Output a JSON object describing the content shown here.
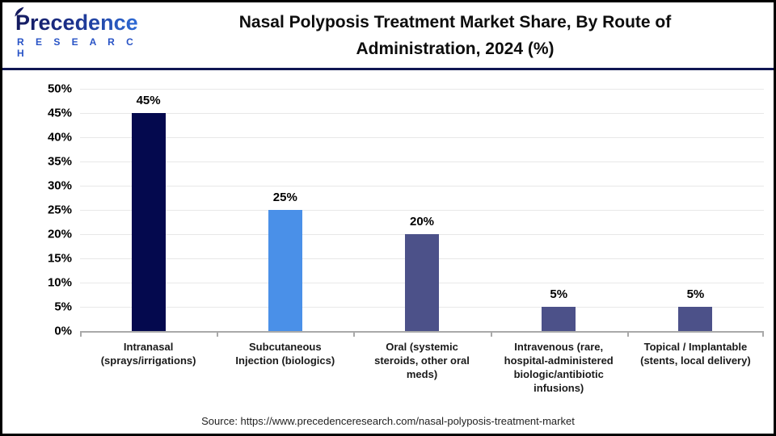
{
  "logo": {
    "brand": "Precedence",
    "brand_sub": "R E S E A R C H"
  },
  "header": {
    "title": "Nasal Polyposis Treatment Market Share, By Route of\nAdministration, 2024 (%)"
  },
  "chart_data": {
    "type": "bar",
    "title": "Nasal Polyposis Treatment Market Share, By Route of Administration, 2024 (%)",
    "categories": [
      "Intranasal\n(sprays/irrigations)",
      "Subcutaneous\nInjection (biologics)",
      "Oral (systemic\nsteroids, other oral\nmeds)",
      "Intravenous (rare,\nhospital-administered\nbiologic/antibiotic\ninfusions)",
      "Topical / Implantable\n(stents, local delivery)"
    ],
    "values": [
      45,
      25,
      20,
      5,
      5
    ],
    "value_labels": [
      "45%",
      "25%",
      "20%",
      "5%",
      "5%"
    ],
    "bar_colors": [
      "#04094e",
      "#4a90e8",
      "#4c5189",
      "#4c5189",
      "#4c5189"
    ],
    "xlabel": "",
    "ylabel": "",
    "ylim": [
      0,
      50
    ],
    "ytick_step": 5,
    "ytick_suffix": "%",
    "grid": true,
    "legend_position": "none"
  },
  "source": {
    "text": "Source: https://www.precedenceresearch.com/nasal-polyposis-treatment-market"
  },
  "colors": {
    "divider_navy": "#101653",
    "gridline": "#e8e8e8",
    "axis_gray": "#a9a9a9",
    "frame_border": "#000000",
    "bar_navy": "#04094e",
    "bar_blue": "#4a90e8",
    "bar_slate": "#4c5189"
  }
}
